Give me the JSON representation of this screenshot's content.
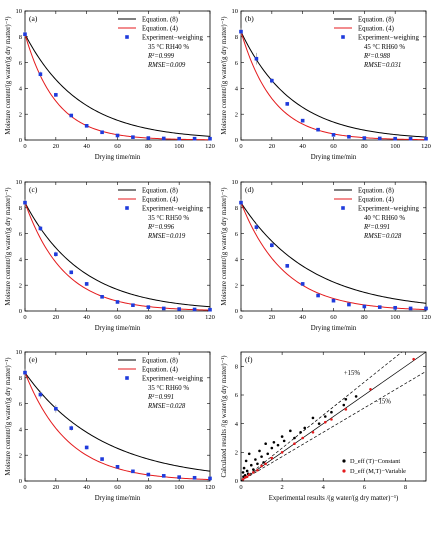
{
  "figure": {
    "ylabel": "Moisture content/(g water/(g dry matter)⁻¹)",
    "xlabel": "Drying time/min"
  },
  "chart_data": [
    {
      "type": "line",
      "panel_label": "(a)",
      "xlabel": "Drying time/min",
      "ylabel": "Moisture content/(g water/(g dry matter)⁻¹)",
      "xlim": [
        0,
        120
      ],
      "ylim": [
        0,
        10
      ],
      "xticks": [
        0,
        20,
        40,
        60,
        80,
        100,
        120
      ],
      "yticks": [
        0,
        2,
        4,
        6,
        8,
        10
      ],
      "legend": [
        "Equation. (8)",
        "Equation. (4)",
        "Experiment−weighing"
      ],
      "annotations": [
        "35 °C RH40 %",
        "R²=0.999",
        "RMSE=0.009"
      ],
      "eq8_k": 0.028,
      "eq4_k": 0.05,
      "y0": 8.2,
      "points": {
        "x": [
          0,
          10,
          20,
          30,
          40,
          50,
          60,
          70,
          80,
          90,
          100,
          110,
          120
        ],
        "y": [
          8.2,
          5.1,
          3.5,
          1.9,
          1.1,
          0.6,
          0.35,
          0.22,
          0.15,
          0.12,
          0.1,
          0.1,
          0.1
        ],
        "err": [
          0.2,
          0.2,
          0.15,
          0.1,
          0.08,
          0.06,
          0.05,
          0.04,
          0.03,
          0.03,
          0.03,
          0.03,
          0.03
        ]
      }
    },
    {
      "type": "line",
      "panel_label": "(b)",
      "xlabel": "Drying time/min",
      "ylabel": "Moisture content/(g water/(g dry matter)⁻¹)",
      "xlim": [
        0,
        120
      ],
      "ylim": [
        0,
        10
      ],
      "xticks": [
        0,
        20,
        40,
        60,
        80,
        100,
        120
      ],
      "yticks": [
        0,
        2,
        4,
        6,
        8,
        10
      ],
      "legend": [
        "Equation. (8)",
        "Equation. (4)",
        "Experiment−weighing"
      ],
      "annotations": [
        "45 °C RH60 %",
        "R²=0.988",
        "RMSE=0.031"
      ],
      "eq8_k": 0.03,
      "eq4_k": 0.048,
      "y0": 8.4,
      "points": {
        "x": [
          0,
          10,
          20,
          30,
          40,
          50,
          60,
          70,
          80,
          90,
          100,
          110,
          120
        ],
        "y": [
          8.4,
          6.3,
          4.6,
          2.8,
          1.5,
          0.8,
          0.4,
          0.25,
          0.15,
          0.12,
          0.1,
          0.1,
          0.1
        ],
        "err": [
          0.3,
          0.45,
          0.2,
          0.15,
          0.1,
          0.08,
          0.06,
          0.05,
          0.04,
          0.03,
          0.03,
          0.03,
          0.03
        ]
      }
    },
    {
      "type": "line",
      "panel_label": "(c)",
      "xlabel": "Drying time/min",
      "ylabel": "Moisture content/(g water/(g dry matter)⁻¹)",
      "xlim": [
        0,
        120
      ],
      "ylim": [
        0,
        10
      ],
      "xticks": [
        0,
        20,
        40,
        60,
        80,
        100,
        120
      ],
      "yticks": [
        0,
        2,
        4,
        6,
        8,
        10
      ],
      "legend": [
        "Equation. (8)",
        "Equation. (4)",
        "Experiment−weighing"
      ],
      "annotations": [
        "35 °C RH50 %",
        "R²=0.996",
        "RMSE=0.019"
      ],
      "eq8_k": 0.027,
      "eq4_k": 0.04,
      "y0": 8.4,
      "points": {
        "x": [
          0,
          10,
          20,
          30,
          40,
          50,
          60,
          70,
          80,
          90,
          100,
          110,
          120
        ],
        "y": [
          8.4,
          6.4,
          4.4,
          3.0,
          2.1,
          1.1,
          0.7,
          0.45,
          0.3,
          0.2,
          0.15,
          0.12,
          0.1
        ],
        "err": [
          0.25,
          0.2,
          0.2,
          0.15,
          0.15,
          0.1,
          0.08,
          0.06,
          0.05,
          0.04,
          0.03,
          0.03,
          0.03
        ]
      }
    },
    {
      "type": "line",
      "panel_label": "(d)",
      "xlabel": "Drying time/min",
      "ylabel": "Moisture content/(g water/(g dry matter)⁻¹)",
      "xlim": [
        0,
        120
      ],
      "ylim": [
        0,
        10
      ],
      "xticks": [
        0,
        20,
        40,
        60,
        80,
        100,
        120
      ],
      "yticks": [
        0,
        2,
        4,
        6,
        8,
        10
      ],
      "legend": [
        "Equation. (8)",
        "Equation. (4)",
        "Experiment−weighing"
      ],
      "annotations": [
        "40 °C RH60 %",
        "R²=0.991",
        "RMSE=0.028"
      ],
      "eq8_k": 0.022,
      "eq4_k": 0.036,
      "y0": 8.4,
      "points": {
        "x": [
          0,
          10,
          20,
          30,
          40,
          50,
          60,
          70,
          80,
          90,
          100,
          110,
          120
        ],
        "y": [
          8.4,
          6.5,
          5.1,
          3.5,
          2.1,
          1.2,
          0.8,
          0.5,
          0.35,
          0.3,
          0.25,
          0.2,
          0.2
        ],
        "err": [
          0.25,
          0.3,
          0.2,
          0.15,
          0.15,
          0.1,
          0.08,
          0.06,
          0.05,
          0.04,
          0.03,
          0.03,
          0.03
        ]
      }
    },
    {
      "type": "line",
      "panel_label": "(e)",
      "xlabel": "Drying time/min",
      "ylabel": "Moisture content/(g water/(g dry matter)⁻¹)",
      "xlim": [
        0,
        120
      ],
      "ylim": [
        0,
        10
      ],
      "xticks": [
        0,
        20,
        40,
        60,
        80,
        100,
        120
      ],
      "yticks": [
        0,
        2,
        4,
        6,
        8,
        10
      ],
      "legend": [
        "Equation. (8)",
        "Equation. (4)",
        "Experiment−weighing"
      ],
      "annotations": [
        "35 °C RH60 %",
        "R²=0.991",
        "RMSE=0.028"
      ],
      "eq8_k": 0.02,
      "eq4_k": 0.036,
      "y0": 8.4,
      "points": {
        "x": [
          0,
          10,
          20,
          30,
          40,
          50,
          60,
          70,
          80,
          90,
          100,
          110,
          120
        ],
        "y": [
          8.4,
          6.7,
          5.6,
          4.1,
          2.6,
          1.7,
          1.1,
          0.75,
          0.5,
          0.4,
          0.3,
          0.25,
          0.2
        ],
        "err": [
          0.3,
          0.3,
          0.3,
          0.2,
          0.15,
          0.12,
          0.1,
          0.08,
          0.06,
          0.05,
          0.04,
          0.03,
          0.03
        ]
      }
    },
    {
      "type": "scatter",
      "panel_label": "(f)",
      "xlabel": "Experimental results /(g water/(g dry matter)⁻¹)",
      "ylabel": "Calculated results /(g water/(g dry matter)⁻¹)",
      "xlim": [
        0,
        9
      ],
      "ylim": [
        0,
        9
      ],
      "xticks": [
        0,
        2,
        4,
        6,
        8
      ],
      "yticks": [
        0,
        2,
        4,
        6,
        8
      ],
      "bands": [
        "+15%",
        "−15%"
      ],
      "legend": [
        "D_eff (T)−Constant",
        "D_eff (M,T)−Variable"
      ],
      "series": [
        {
          "name": "D_eff (T)−Constant",
          "color": "#000000",
          "x": [
            0.1,
            0.12,
            0.15,
            0.2,
            0.25,
            0.3,
            0.35,
            0.4,
            0.5,
            0.6,
            0.7,
            0.8,
            0.9,
            1.0,
            1.1,
            1.2,
            1.3,
            1.5,
            1.6,
            1.8,
            2.0,
            2.1,
            2.4,
            2.6,
            2.9,
            3.1,
            3.5,
            3.8,
            4.1,
            4.4,
            5.0,
            5.1,
            5.6
          ],
          "y": [
            0.6,
            0.3,
            0.9,
            0.4,
            1.4,
            0.7,
            0.5,
            1.9,
            1.1,
            0.8,
            1.5,
            1.2,
            2.1,
            1.7,
            1.3,
            2.6,
            1.9,
            2.3,
            2.7,
            2.5,
            3.1,
            2.8,
            3.5,
            3.0,
            3.4,
            3.7,
            4.4,
            4.0,
            4.5,
            4.8,
            5.3,
            5.7,
            5.9
          ]
        },
        {
          "name": "D_eff (M,T)−Variable",
          "color": "#e41a1c",
          "x": [
            0.1,
            0.2,
            0.3,
            0.4,
            0.6,
            0.8,
            1.0,
            1.2,
            1.5,
            2.0,
            2.6,
            3.0,
            3.5,
            4.1,
            4.4,
            5.1,
            6.3,
            8.4
          ],
          "y": [
            0.12,
            0.25,
            0.3,
            0.45,
            0.6,
            0.75,
            1.05,
            1.2,
            1.6,
            2.0,
            2.6,
            3.0,
            3.4,
            4.1,
            4.3,
            5.0,
            6.4,
            8.5
          ]
        }
      ]
    }
  ]
}
